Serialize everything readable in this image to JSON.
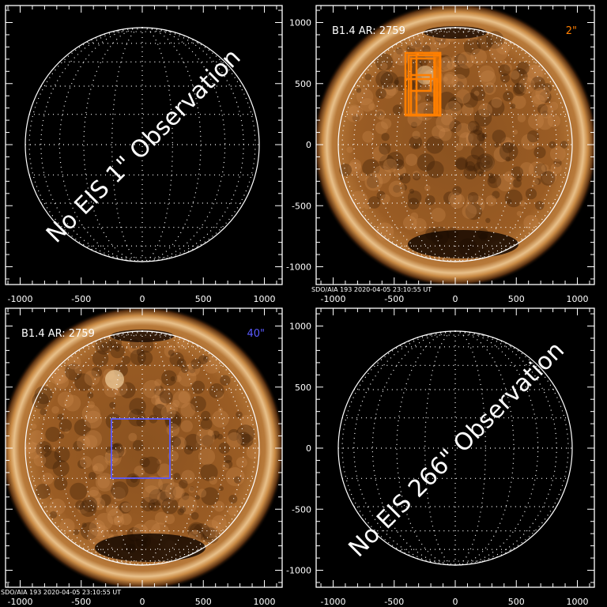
{
  "panels": [
    {
      "id": "tl",
      "has_image": false,
      "message": "No EIS 1\" Observation",
      "header": "",
      "size_label": "",
      "footer": ""
    },
    {
      "id": "tr",
      "has_image": true,
      "message": "",
      "header": "B1.4 AR: 2759",
      "size_label": "2\"",
      "size_color": "#ff7f00",
      "footer": "SDO/AIA 193   2020-04-05 23:10:55 UT"
    },
    {
      "id": "bl",
      "has_image": true,
      "message": "",
      "header": "B1.4 AR: 2759",
      "size_label": "40\"",
      "size_color": "#5a5aff",
      "footer": "SDO/AIA 193   2020-04-05 23:10:55 UT"
    },
    {
      "id": "br",
      "has_image": false,
      "message": "No EIS 266\" Observation",
      "header": "",
      "size_label": "",
      "footer": ""
    }
  ],
  "axis_ticks": [
    "-1000",
    "-500",
    "0",
    "500",
    "1000"
  ],
  "colors": {
    "axis": "#ffffff",
    "raster_box": "#ff7f00",
    "fov_box": "#5a5aff",
    "sun_core": "#b8702a",
    "sun_limb": "#f0c890"
  }
}
